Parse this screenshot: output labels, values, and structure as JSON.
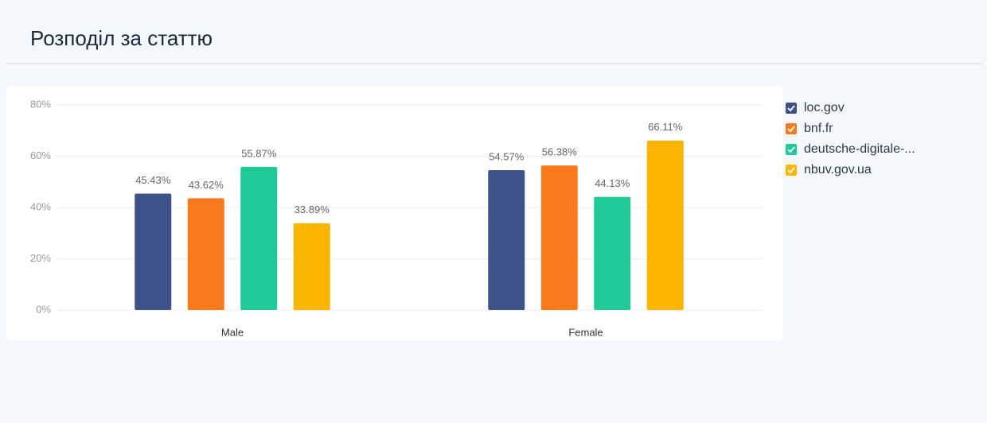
{
  "chart_data": {
    "type": "bar",
    "title": "Розподіл за статтю",
    "categories": [
      "Male",
      "Female"
    ],
    "series": [
      {
        "name": "loc.gov",
        "color": "#3f5189",
        "values": [
          45.43,
          54.57
        ],
        "value_labels": [
          "45.43%",
          "54.57%"
        ]
      },
      {
        "name": "bnf.fr",
        "color": "#f97a1d",
        "values": [
          43.62,
          56.38
        ],
        "value_labels": [
          "43.62%",
          "56.38%"
        ]
      },
      {
        "name": "deutsche-digitale-...",
        "color": "#20c997",
        "values": [
          55.87,
          44.13
        ],
        "value_labels": [
          "55.87%",
          "44.13%"
        ]
      },
      {
        "name": "nbuv.gov.ua",
        "color": "#fdb600",
        "values": [
          33.89,
          66.11
        ],
        "value_labels": [
          "33.89%",
          "66.11%"
        ]
      }
    ],
    "ylim": [
      0,
      80
    ],
    "yticks": [
      {
        "value": 0,
        "label": "0%"
      },
      {
        "value": 20,
        "label": "20%"
      },
      {
        "value": 40,
        "label": "40%"
      },
      {
        "value": 60,
        "label": "60%"
      },
      {
        "value": 80,
        "label": "80%"
      }
    ],
    "grid": true,
    "legend": "right"
  }
}
